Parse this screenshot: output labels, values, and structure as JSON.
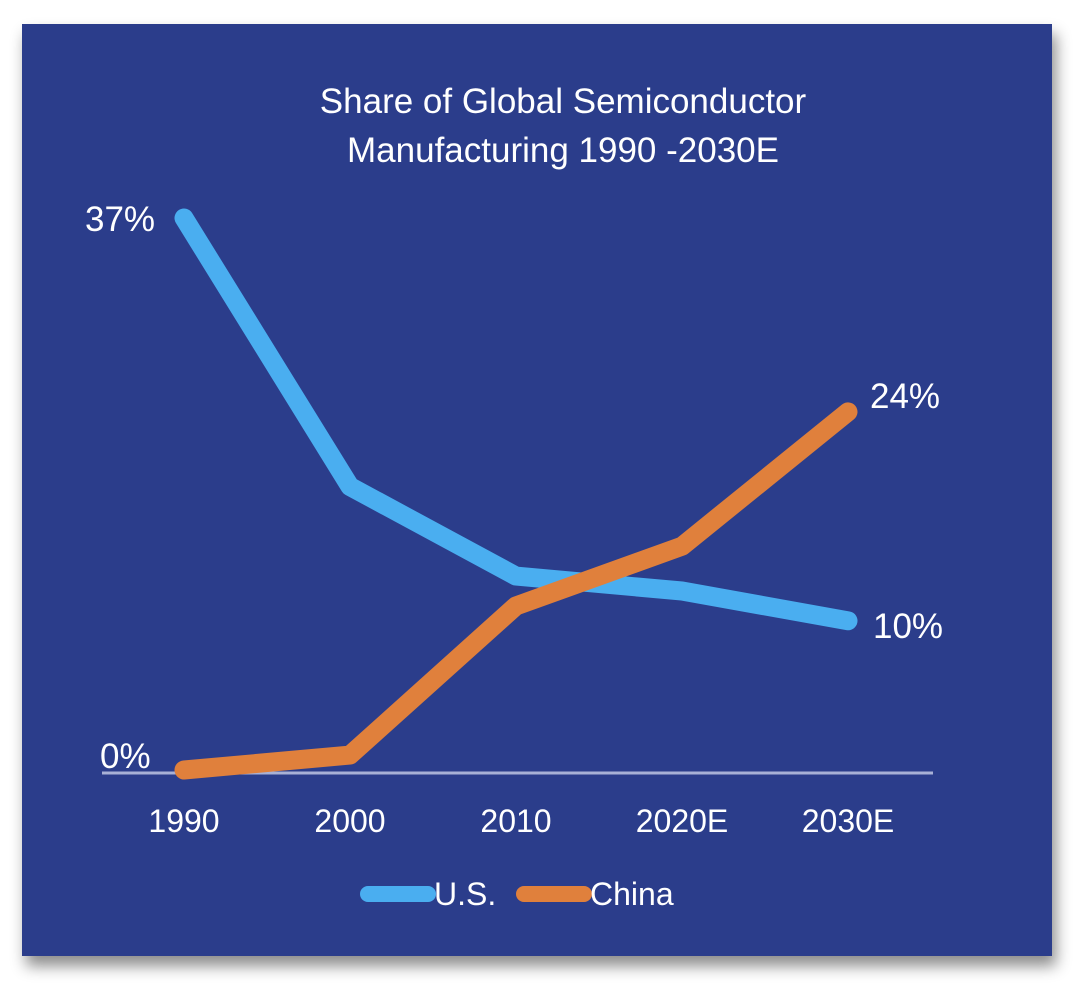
{
  "chart_data": {
    "type": "line",
    "title": "Share of Global Semiconductor Manufacturing 1990 -2030E",
    "title_lines": [
      "Share of Global Semiconductor",
      "Manufacturing 1990 -2030E"
    ],
    "categories": [
      "1990",
      "2000",
      "2010",
      "2020E",
      "2030E"
    ],
    "series": [
      {
        "name": "U.S.",
        "color": "#4aaef0",
        "values": [
          37,
          19,
          13,
          12,
          10
        ]
      },
      {
        "name": "China",
        "color": "#e0803c",
        "values": [
          0,
          1,
          11,
          15,
          24
        ]
      }
    ],
    "ylim": [
      0,
      37
    ],
    "xlabel": "",
    "ylabel": "",
    "grid": false,
    "legend_position": "bottom",
    "labels": {
      "us_start": "37%",
      "zero": "0%",
      "china_end": "24%",
      "us_end": "10%"
    }
  },
  "colors": {
    "background": "#2b3d8b",
    "text": "#ffffff",
    "axis": "#a8b1d6"
  }
}
